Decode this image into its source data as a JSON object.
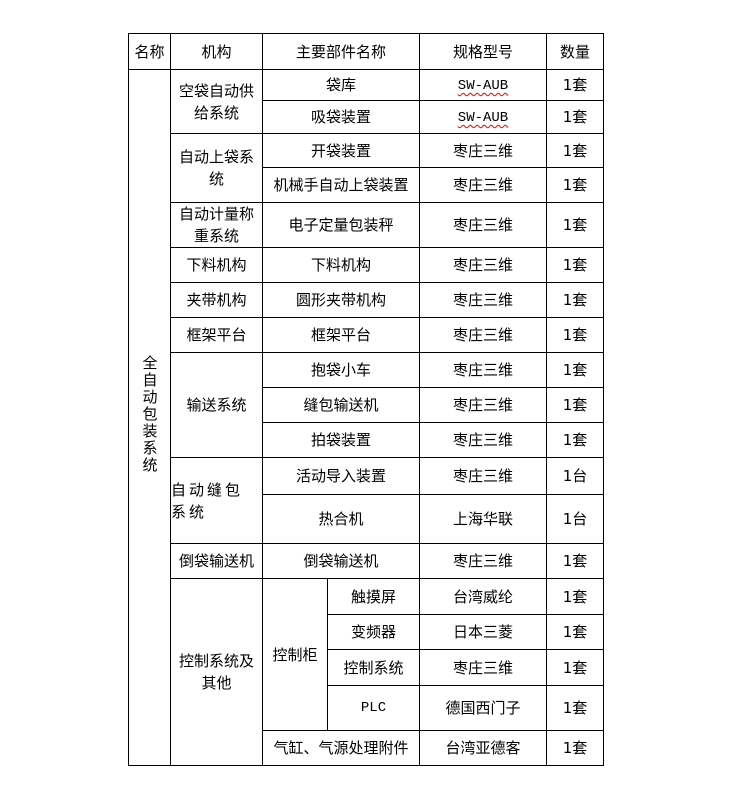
{
  "header": {
    "name": "名称",
    "mechanism": "机构",
    "component": "主要部件名称",
    "spec": "规格型号",
    "qty": "数量"
  },
  "system_name": "全自动包装系统",
  "groups": {
    "g1": "空袋自动供给系统",
    "g2": "自动上袋系统",
    "g3": "自动计量称重系统",
    "g4": "下料机构",
    "g5": "夹带机构",
    "g6": "框架平台",
    "g7": "输送系统",
    "g8": "自动缝包系统",
    "g9": "倒袋输送机",
    "g10": "控制系统及其他",
    "cabinet": "控制柜"
  },
  "rows": [
    {
      "component": "袋库",
      "spec": "SW-AUB",
      "qty": "1套"
    },
    {
      "component": "吸袋装置",
      "spec": "SW-AUB",
      "qty": "1套"
    },
    {
      "component": "开袋装置",
      "spec": "枣庄三维",
      "qty": "1套"
    },
    {
      "component": "机械手自动上袋装置",
      "spec": "枣庄三维",
      "qty": "1套"
    },
    {
      "component": "电子定量包装秤",
      "spec": "枣庄三维",
      "qty": "1套"
    },
    {
      "component": "下料机构",
      "spec": "枣庄三维",
      "qty": "1套"
    },
    {
      "component": "圆形夹带机构",
      "spec": "枣庄三维",
      "qty": "1套"
    },
    {
      "component": "框架平台",
      "spec": "枣庄三维",
      "qty": "1套"
    },
    {
      "component": "抱袋小车",
      "spec": "枣庄三维",
      "qty": "1套"
    },
    {
      "component": "缝包输送机",
      "spec": "枣庄三维",
      "qty": "1套"
    },
    {
      "component": "拍袋装置",
      "spec": "枣庄三维",
      "qty": "1套"
    },
    {
      "component": "活动导入装置",
      "spec": "枣庄三维",
      "qty": "1台"
    },
    {
      "component": "热合机",
      "spec": "上海华联",
      "qty": "1台"
    },
    {
      "component": "倒袋输送机",
      "spec": "枣庄三维",
      "qty": "1套"
    },
    {
      "component": "触摸屏",
      "spec": "台湾威纶",
      "qty": "1套"
    },
    {
      "component": "变频器",
      "spec": "日本三菱",
      "qty": "1套"
    },
    {
      "component": "控制系统",
      "spec": "枣庄三维",
      "qty": "1套"
    },
    {
      "component": "PLC",
      "spec": "德国西门子",
      "qty": "1套"
    },
    {
      "component": "气缸、气源处理附件",
      "spec": "台湾亚德客",
      "qty": "1套"
    }
  ]
}
